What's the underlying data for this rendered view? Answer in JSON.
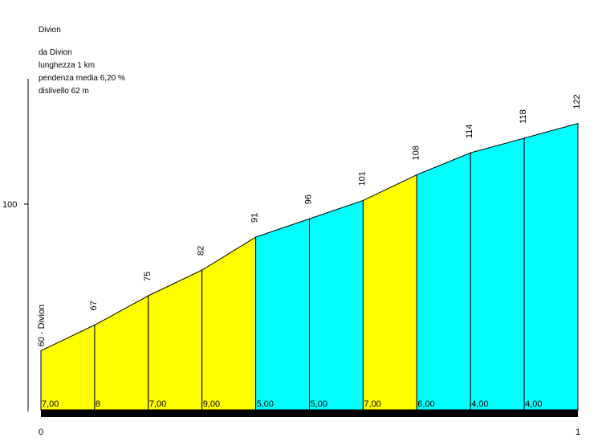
{
  "chart_data": {
    "type": "area",
    "title": "Divion",
    "info_lines": [
      "da Divion",
      "lunghezza 1 km",
      "pendenza media 6,20 %",
      "dislivello 62 m"
    ],
    "start_label": "60 - Divion",
    "x_ticks": [
      "0",
      "1"
    ],
    "y_ticks": [
      {
        "value": 100,
        "label": "100"
      }
    ],
    "ylim": [
      47,
      147
    ],
    "xlim": [
      0,
      1
    ],
    "segments": [
      {
        "x0": 0.0,
        "x1": 0.1,
        "y0": 60,
        "y1": 67,
        "grade": "7,00",
        "color": "#ffff00"
      },
      {
        "x0": 0.1,
        "x1": 0.2,
        "y0": 67,
        "y1": 75,
        "grade": "8",
        "color": "#ffff00"
      },
      {
        "x0": 0.2,
        "x1": 0.3,
        "y0": 75,
        "y1": 82,
        "grade": "7,00",
        "color": "#ffff00"
      },
      {
        "x0": 0.3,
        "x1": 0.4,
        "y0": 82,
        "y1": 91,
        "grade": "9,00",
        "color": "#ffff00"
      },
      {
        "x0": 0.4,
        "x1": 0.5,
        "y0": 91,
        "y1": 96,
        "grade": "5,00",
        "color": "#00ffff"
      },
      {
        "x0": 0.5,
        "x1": 0.6,
        "y0": 96,
        "y1": 101,
        "grade": "5,00",
        "color": "#00ffff"
      },
      {
        "x0": 0.6,
        "x1": 0.7,
        "y0": 101,
        "y1": 108,
        "grade": "7,00",
        "color": "#ffff00"
      },
      {
        "x0": 0.7,
        "x1": 0.8,
        "y0": 108,
        "y1": 114,
        "grade": "6,00",
        "color": "#00ffff"
      },
      {
        "x0": 0.8,
        "x1": 0.9,
        "y0": 114,
        "y1": 118,
        "grade": "4,00",
        "color": "#00ffff"
      },
      {
        "x0": 0.9,
        "x1": 1.0,
        "y0": 118,
        "y1": 122,
        "grade": "4,00",
        "color": "#00ffff"
      }
    ],
    "point_labels": [
      {
        "x": 0.1,
        "label": "67"
      },
      {
        "x": 0.2,
        "label": "75"
      },
      {
        "x": 0.3,
        "label": "82"
      },
      {
        "x": 0.4,
        "label": "91"
      },
      {
        "x": 0.5,
        "label": "96"
      },
      {
        "x": 0.6,
        "label": "101"
      },
      {
        "x": 0.7,
        "label": "108"
      },
      {
        "x": 0.8,
        "label": "114"
      },
      {
        "x": 0.9,
        "label": "118"
      },
      {
        "x": 1.0,
        "label": "122"
      }
    ]
  }
}
